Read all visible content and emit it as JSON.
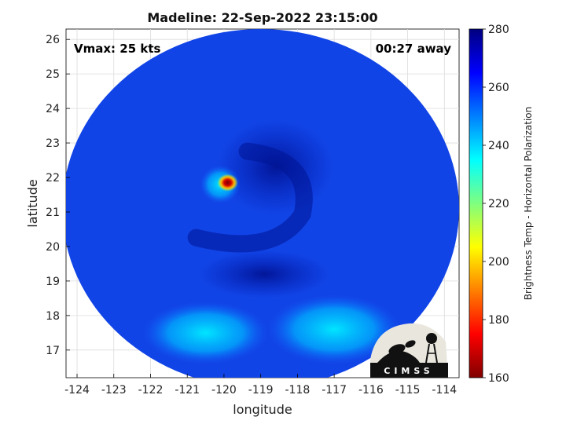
{
  "chart_data": {
    "type": "heatmap",
    "title": "Madeline: 22-Sep-2022 23:15:00",
    "xlabel": "longitude",
    "ylabel": "latitude",
    "xlim": [
      -124.3,
      -113.6
    ],
    "ylim": [
      16.2,
      26.3
    ],
    "xticks": [
      -124,
      -123,
      -122,
      -121,
      -120,
      -119,
      -118,
      -117,
      -116,
      -115,
      -114
    ],
    "yticks": [
      17,
      18,
      19,
      20,
      21,
      22,
      23,
      24,
      25,
      26
    ],
    "grid": true,
    "annotations": {
      "intensity": "Vmax: 25 kts",
      "time_offset": "00:27 away"
    },
    "colorbar": {
      "label": "Brightness Temp - Horizontal Polarization",
      "range": [
        160,
        280
      ],
      "ticks": [
        160,
        180,
        200,
        220,
        240,
        260,
        280
      ],
      "colormap": "jet"
    },
    "swath": {
      "center_lon": -119.0,
      "center_lat": 21.1,
      "radius_lon": 5.4,
      "radius_lat": 5.2
    },
    "features": [
      {
        "name": "center-warm-spot",
        "lon": -119.9,
        "lat": 21.85,
        "value": 165
      },
      {
        "name": "cyan-ring",
        "lon": -120.1,
        "lat": 21.8,
        "value": 238
      },
      {
        "name": "dark-band-east",
        "lon": -118.6,
        "lat": 22.3,
        "value": 272
      },
      {
        "name": "dark-band-south",
        "lon": -118.9,
        "lat": 19.2,
        "value": 270
      },
      {
        "name": "cyan-southwest",
        "lon": -120.5,
        "lat": 17.5,
        "value": 240
      },
      {
        "name": "cyan-southeast",
        "lon": -117.0,
        "lat": 17.6,
        "value": 242
      }
    ]
  },
  "logo": {
    "text": "CIMSS"
  }
}
